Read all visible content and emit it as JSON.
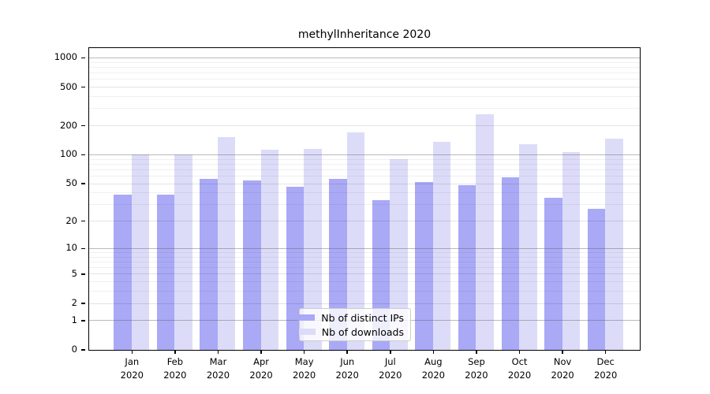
{
  "title": "methylInheritance 2020",
  "chart_data": {
    "type": "bar",
    "title": "methylInheritance 2020",
    "categories": [
      "Jan",
      "Feb",
      "Mar",
      "Apr",
      "May",
      "Jun",
      "Jul",
      "Aug",
      "Sep",
      "Oct",
      "Nov",
      "Dec"
    ],
    "x_year_line": "2020",
    "series": [
      {
        "name": "Nb of distinct IPs",
        "color": "#a9a9f6",
        "values": [
          38,
          38,
          56,
          54,
          46,
          56,
          33,
          52,
          48,
          58,
          35,
          27
        ]
      },
      {
        "name": "Nb of downloads",
        "color": "#dcdcf9",
        "values": [
          100,
          100,
          152,
          113,
          115,
          170,
          90,
          135,
          260,
          128,
          105,
          145
        ]
      }
    ],
    "y_ticks": [
      0,
      1,
      2,
      5,
      10,
      20,
      50,
      100,
      200,
      500,
      1000
    ],
    "y_scale": "log(1+x)",
    "ylim": [
      0,
      1250
    ],
    "xlabel": "",
    "ylabel": "",
    "grid": true,
    "legend_position": "bottom-center-inside",
    "colors": {
      "frame": "#000000",
      "decade_gridline": "#9a9a9a",
      "major_gridline": "#e3e3e3",
      "minor_gridline": "#f0f0f0",
      "legend_border": "#cccccc"
    }
  }
}
